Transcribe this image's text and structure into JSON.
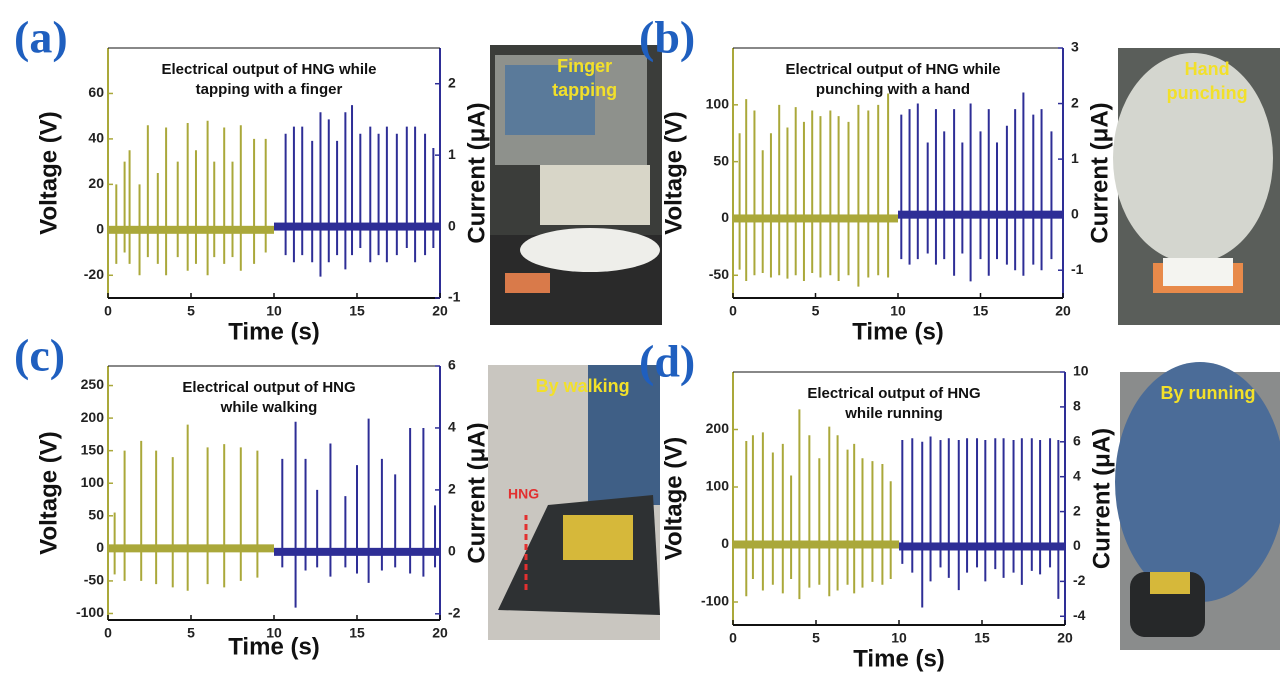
{
  "chart_data": [
    {
      "type": "line",
      "label": "(a)",
      "title": [
        "Electrical output of HNG while",
        "tapping with a finger"
      ],
      "xlabel": "Time (s)",
      "ylabel": "Voltage (V)",
      "y2label": "Current (μA)",
      "xlim": [
        0,
        20
      ],
      "xticks": [
        0,
        5,
        10,
        15,
        20
      ],
      "ylim": [
        -30,
        80
      ],
      "yticks": [
        -20,
        0,
        20,
        40,
        60
      ],
      "y2lim": [
        -1,
        2.5
      ],
      "y2ticks": [
        -1,
        0,
        1,
        2
      ],
      "series": [
        {
          "color": "#aaa83a",
          "span": [
            0,
            10
          ],
          "x": [
            0.5,
            1.0,
            1.3,
            1.9,
            2.4,
            3.0,
            3.5,
            4.2,
            4.8,
            5.3,
            6.0,
            6.4,
            7.0,
            7.5,
            8.0,
            8.8,
            9.5
          ],
          "values": [
            20,
            30,
            35,
            20,
            46,
            25,
            45,
            30,
            47,
            35,
            48,
            30,
            45,
            30,
            46,
            40,
            40
          ],
          "lows": [
            -15,
            -10,
            -15,
            -20,
            -12,
            -15,
            -20,
            -12,
            -18,
            -15,
            -20,
            -12,
            -15,
            -12,
            -18,
            -15,
            -10
          ]
        },
        {
          "color": "#2e2e96",
          "axis": "y2",
          "span": [
            10,
            20
          ],
          "x": [
            10.7,
            11.2,
            11.7,
            12.3,
            12.8,
            13.3,
            13.8,
            14.3,
            14.7,
            15.2,
            15.8,
            16.3,
            16.8,
            17.4,
            18.0,
            18.5,
            19.1,
            19.6
          ],
          "values": [
            1.3,
            1.4,
            1.4,
            1.2,
            1.6,
            1.5,
            1.2,
            1.6,
            1.7,
            1.3,
            1.4,
            1.3,
            1.4,
            1.3,
            1.4,
            1.4,
            1.3,
            1.1
          ],
          "lows": [
            -0.4,
            -0.5,
            -0.4,
            -0.5,
            -0.7,
            -0.5,
            -0.4,
            -0.6,
            -0.4,
            -0.3,
            -0.5,
            -0.4,
            -0.5,
            -0.4,
            -0.3,
            -0.5,
            -0.4,
            -0.3
          ]
        }
      ],
      "photo_caption": [
        "Finger",
        "tapping"
      ]
    },
    {
      "type": "line",
      "label": "(b)",
      "title": [
        "Electrical output of HNG while",
        "punching with a hand"
      ],
      "xlabel": "Time (s)",
      "ylabel": "Voltage (V)",
      "y2label": "Current (μA)",
      "xlim": [
        0,
        20
      ],
      "xticks": [
        0,
        5,
        10,
        15,
        20
      ],
      "ylim": [
        -70,
        150
      ],
      "yticks": [
        -50,
        0,
        50,
        100
      ],
      "y2lim": [
        -1.5,
        3
      ],
      "y2ticks": [
        -1,
        0,
        1,
        2,
        3
      ],
      "series": [
        {
          "color": "#aaa83a",
          "span": [
            0,
            10
          ],
          "x": [
            0.4,
            0.8,
            1.3,
            1.8,
            2.3,
            2.8,
            3.3,
            3.8,
            4.3,
            4.8,
            5.3,
            5.9,
            6.4,
            7.0,
            7.6,
            8.2,
            8.8,
            9.4
          ],
          "values": [
            75,
            105,
            95,
            60,
            75,
            100,
            80,
            98,
            85,
            95,
            90,
            95,
            90,
            85,
            100,
            95,
            100,
            110
          ],
          "lows": [
            -45,
            -55,
            -50,
            -48,
            -52,
            -50,
            -53,
            -50,
            -55,
            -48,
            -52,
            -50,
            -55,
            -50,
            -60,
            -52,
            -50,
            -52
          ]
        },
        {
          "color": "#2e2e96",
          "axis": "y2",
          "span": [
            10,
            20
          ],
          "x": [
            10.2,
            10.7,
            11.2,
            11.8,
            12.3,
            12.8,
            13.4,
            13.9,
            14.4,
            15.0,
            15.5,
            16.0,
            16.6,
            17.1,
            17.6,
            18.2,
            18.7,
            19.3
          ],
          "values": [
            1.8,
            1.9,
            2.0,
            1.3,
            1.9,
            1.5,
            1.9,
            1.3,
            2.0,
            1.5,
            1.9,
            1.3,
            1.6,
            1.9,
            2.2,
            1.8,
            1.9,
            1.5
          ],
          "lows": [
            -0.8,
            -0.9,
            -0.8,
            -0.7,
            -0.9,
            -0.8,
            -1.1,
            -0.7,
            -1.2,
            -0.8,
            -1.1,
            -0.8,
            -0.9,
            -1.0,
            -1.1,
            -0.9,
            -1.0,
            -0.8
          ]
        }
      ],
      "photo_caption": [
        "Hand",
        "punching"
      ]
    },
    {
      "type": "line",
      "label": "(c)",
      "title": [
        "Electrical output of HNG",
        "while walking"
      ],
      "xlabel": "Time (s)",
      "ylabel": "Voltage (V)",
      "y2label": "Current (μA)",
      "xlim": [
        0,
        20
      ],
      "xticks": [
        0,
        5,
        10,
        15,
        20
      ],
      "ylim": [
        -110,
        280
      ],
      "yticks": [
        -100,
        -50,
        0,
        50,
        100,
        150,
        200,
        250
      ],
      "y2lim": [
        -2.2,
        6
      ],
      "y2ticks": [
        -2,
        0,
        2,
        4,
        6
      ],
      "series": [
        {
          "color": "#aaa83a",
          "span": [
            0,
            10
          ],
          "x": [
            0.4,
            1.0,
            2.0,
            2.9,
            3.9,
            4.8,
            6.0,
            7.0,
            8.0,
            9.0
          ],
          "values": [
            55,
            150,
            165,
            150,
            140,
            190,
            155,
            160,
            155,
            150
          ],
          "lows": [
            -40,
            -50,
            -50,
            -55,
            -60,
            -65,
            -55,
            -60,
            -50,
            -45
          ]
        },
        {
          "color": "#2e2e96",
          "axis": "y2",
          "span": [
            10,
            20
          ],
          "x": [
            10.5,
            11.3,
            11.9,
            12.6,
            13.4,
            14.3,
            15.0,
            15.7,
            16.5,
            17.3,
            18.2,
            19.0,
            19.7
          ],
          "values": [
            3.0,
            4.2,
            3.0,
            2.0,
            3.5,
            1.8,
            2.8,
            4.3,
            3.0,
            2.5,
            4.0,
            4.0,
            1.5
          ],
          "lows": [
            -0.5,
            -1.8,
            -0.6,
            -0.5,
            -0.8,
            -0.5,
            -0.7,
            -1.0,
            -0.6,
            -0.5,
            -0.7,
            -0.8,
            -0.5
          ]
        }
      ],
      "photo_caption": [
        "By walking"
      ],
      "photo_annotation": "HNG"
    },
    {
      "type": "line",
      "label": "(d)",
      "title": [
        "Electrical output of HNG",
        "while running"
      ],
      "xlabel": "Time (s)",
      "ylabel": "Voltage (V)",
      "y2label": "Current (μA)",
      "xlim": [
        0,
        20
      ],
      "xticks": [
        0,
        5,
        10,
        15,
        20
      ],
      "ylim": [
        -140,
        300
      ],
      "yticks": [
        -100,
        0,
        100,
        200
      ],
      "y2lim": [
        -4.5,
        10
      ],
      "y2ticks": [
        -4,
        -2,
        0,
        2,
        4,
        6,
        8,
        10
      ],
      "series": [
        {
          "color": "#aaa83a",
          "span": [
            0,
            10
          ],
          "x": [
            0.8,
            1.2,
            1.8,
            2.4,
            3.0,
            3.5,
            4.0,
            4.6,
            5.2,
            5.8,
            6.3,
            6.9,
            7.3,
            7.8,
            8.4,
            9.0,
            9.5
          ],
          "values": [
            180,
            190,
            195,
            160,
            175,
            120,
            235,
            190,
            150,
            205,
            190,
            165,
            175,
            150,
            145,
            140,
            110
          ],
          "lows": [
            -90,
            -60,
            -80,
            -70,
            -85,
            -60,
            -95,
            -75,
            -70,
            -90,
            -80,
            -70,
            -85,
            -75,
            -65,
            -70,
            -60
          ]
        },
        {
          "color": "#2e2e96",
          "axis": "y2",
          "span": [
            10,
            20
          ],
          "x": [
            10.2,
            10.8,
            11.4,
            11.9,
            12.5,
            13.0,
            13.6,
            14.1,
            14.7,
            15.2,
            15.8,
            16.3,
            16.9,
            17.4,
            18.0,
            18.5,
            19.1,
            19.6
          ],
          "values": [
            6.1,
            6.2,
            6.0,
            6.3,
            6.1,
            6.2,
            6.1,
            6.2,
            6.2,
            6.1,
            6.2,
            6.2,
            6.1,
            6.2,
            6.2,
            6.1,
            6.2,
            6.1
          ],
          "lows": [
            -1.0,
            -1.5,
            -3.5,
            -2.0,
            -1.2,
            -1.8,
            -2.5,
            -1.5,
            -1.2,
            -2.0,
            -1.3,
            -1.8,
            -1.5,
            -2.2,
            -1.4,
            -1.6,
            -1.2,
            -3.0
          ]
        }
      ],
      "photo_caption": [
        "By running"
      ]
    }
  ]
}
